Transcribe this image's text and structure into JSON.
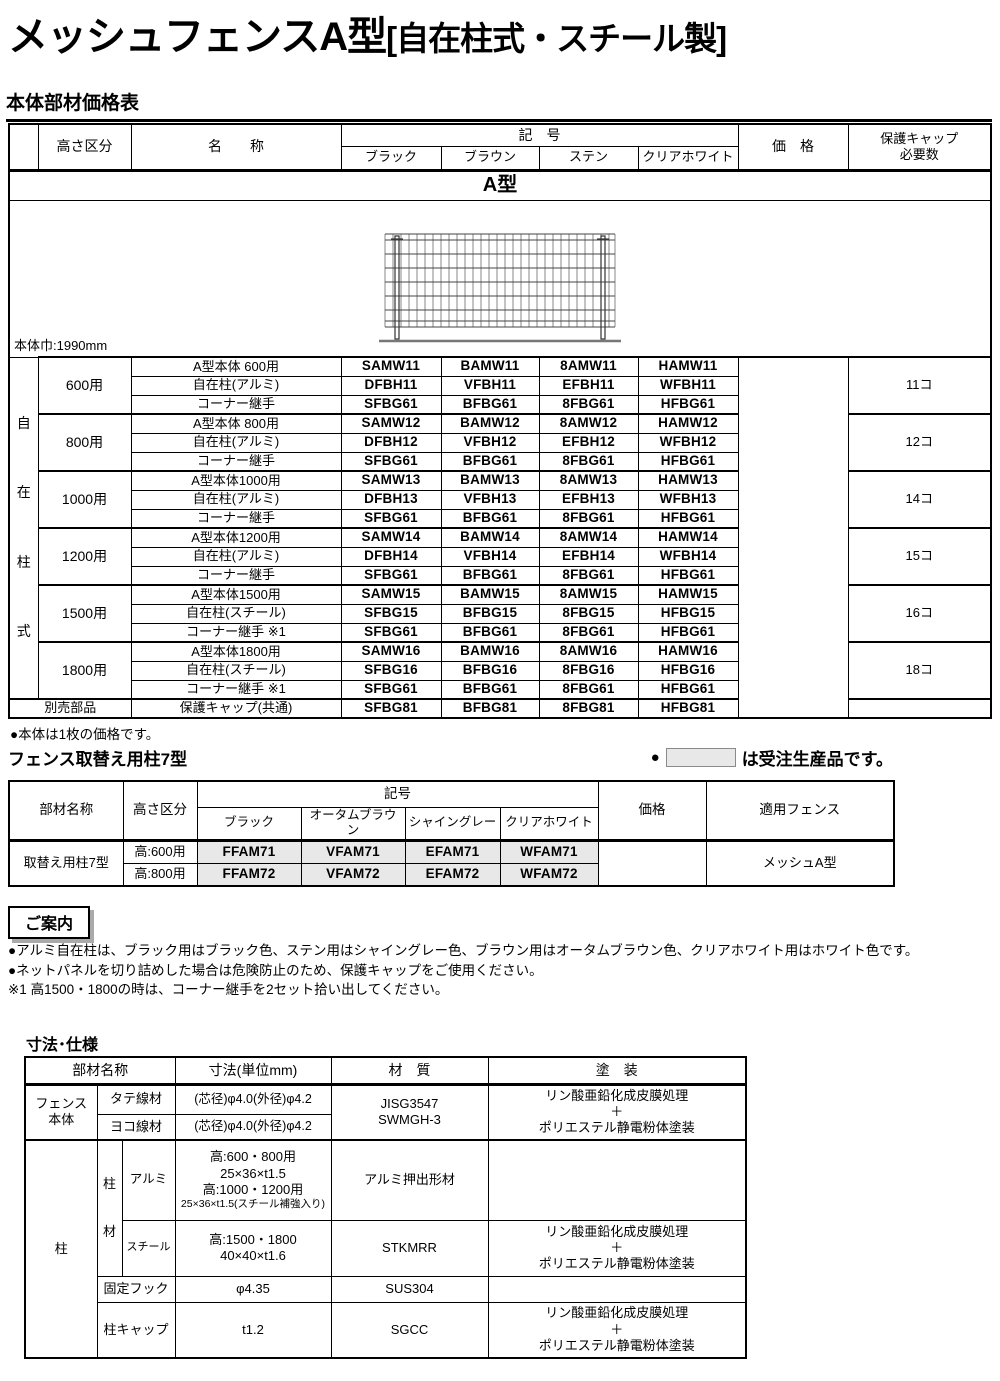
{
  "page": {
    "title": "メッシュフェンスA型",
    "title_bracket": "[自在柱式・スチール製]",
    "price_table_title": "本体部材価格表"
  },
  "price_table": {
    "model_header": "A型",
    "body_width_note": "本体巾:1990mm",
    "headers": {
      "height": "高さ区分",
      "name": "名　　称",
      "code": "記　号",
      "price": "価　格",
      "cap_count": "保護キャップ\n必要数",
      "colors": [
        "ブラック",
        "ブラウン",
        "ステン",
        "クリアホワイト"
      ]
    },
    "side_label": "自在柱式",
    "groups": [
      {
        "height": "600用",
        "cap_count": "11コ",
        "rows": [
          {
            "name": "A型本体 600用",
            "codes": [
              "SAMW11",
              "BAMW11",
              "8AMW11",
              "HAMW11"
            ]
          },
          {
            "name": "自在柱(アルミ)",
            "codes": [
              "DFBH11",
              "VFBH11",
              "EFBH11",
              "WFBH11"
            ]
          },
          {
            "name": "コーナー継手",
            "codes": [
              "SFBG61",
              "BFBG61",
              "8FBG61",
              "HFBG61"
            ]
          }
        ]
      },
      {
        "height": "800用",
        "cap_count": "12コ",
        "rows": [
          {
            "name": "A型本体 800用",
            "codes": [
              "SAMW12",
              "BAMW12",
              "8AMW12",
              "HAMW12"
            ]
          },
          {
            "name": "自在柱(アルミ)",
            "codes": [
              "DFBH12",
              "VFBH12",
              "EFBH12",
              "WFBH12"
            ]
          },
          {
            "name": "コーナー継手",
            "codes": [
              "SFBG61",
              "BFBG61",
              "8FBG61",
              "HFBG61"
            ]
          }
        ]
      },
      {
        "height": "1000用",
        "cap_count": "14コ",
        "rows": [
          {
            "name": "A型本体1000用",
            "codes": [
              "SAMW13",
              "BAMW13",
              "8AMW13",
              "HAMW13"
            ]
          },
          {
            "name": "自在柱(アルミ)",
            "codes": [
              "DFBH13",
              "VFBH13",
              "EFBH13",
              "WFBH13"
            ]
          },
          {
            "name": "コーナー継手",
            "codes": [
              "SFBG61",
              "BFBG61",
              "8FBG61",
              "HFBG61"
            ]
          }
        ]
      },
      {
        "height": "1200用",
        "cap_count": "15コ",
        "rows": [
          {
            "name": "A型本体1200用",
            "codes": [
              "SAMW14",
              "BAMW14",
              "8AMW14",
              "HAMW14"
            ]
          },
          {
            "name": "自在柱(アルミ)",
            "codes": [
              "DFBH14",
              "VFBH14",
              "EFBH14",
              "WFBH14"
            ]
          },
          {
            "name": "コーナー継手",
            "codes": [
              "SFBG61",
              "BFBG61",
              "8FBG61",
              "HFBG61"
            ]
          }
        ]
      },
      {
        "height": "1500用",
        "cap_count": "16コ",
        "rows": [
          {
            "name": "A型本体1500用",
            "codes": [
              "SAMW15",
              "BAMW15",
              "8AMW15",
              "HAMW15"
            ]
          },
          {
            "name": "自在柱(スチール)",
            "codes": [
              "SFBG15",
              "BFBG15",
              "8FBG15",
              "HFBG15"
            ]
          },
          {
            "name": "コーナー継手 ※1",
            "codes": [
              "SFBG61",
              "BFBG61",
              "8FBG61",
              "HFBG61"
            ]
          }
        ]
      },
      {
        "height": "1800用",
        "cap_count": "18コ",
        "rows": [
          {
            "name": "A型本体1800用",
            "codes": [
              "SAMW16",
              "BAMW16",
              "8AMW16",
              "HAMW16"
            ]
          },
          {
            "name": "自在柱(スチール)",
            "codes": [
              "SFBG16",
              "BFBG16",
              "8FBG16",
              "HFBG16"
            ]
          },
          {
            "name": "コーナー継手 ※1",
            "codes": [
              "SFBG61",
              "BFBG61",
              "8FBG61",
              "HFBG61"
            ]
          }
        ]
      }
    ],
    "separate_row": {
      "label": "別売部品",
      "name": "保護キャップ(共通)",
      "codes": [
        "SFBG81",
        "BFBG81",
        "8FBG81",
        "HFBG81"
      ],
      "cap_count": ""
    },
    "footnote": "●本体は1枚の価格です。"
  },
  "replacement_table": {
    "title": "フェンス取替え用柱7型",
    "made_to_order_note": "は受注生産品です。",
    "legend_dot": "●",
    "headers": {
      "part": "部材名称",
      "height": "高さ区分",
      "code": "記号",
      "price": "価格",
      "fence": "適用フェンス",
      "colors": [
        "ブラック",
        "オータムブラウン",
        "シャイングレー",
        "クリアホワイト"
      ]
    },
    "part_name": "取替え用柱7型",
    "applicable_fence": "メッシュA型",
    "rows": [
      {
        "height": "高:600用",
        "codes": [
          "FFAM71",
          "VFAM71",
          "EFAM71",
          "WFAM71"
        ]
      },
      {
        "height": "高:800用",
        "codes": [
          "FFAM72",
          "VFAM72",
          "EFAM72",
          "WFAM72"
        ]
      }
    ]
  },
  "guide": {
    "title": "ご案内",
    "notes": [
      "●アルミ自在柱は、ブラック用はブラック色、ステン用はシャイングレー色、ブラウン用はオータムブラウン色、クリアホワイト用はホワイト色です。",
      "●ネットパネルを切り詰めした場合は危険防止のため、保護キャップをご使用ください。",
      "※1 高1500・1800の時は、コーナー継手を2セット拾い出してください。"
    ]
  },
  "spec_table": {
    "title": "寸法･仕様",
    "headers": {
      "part": "部材名称",
      "size": "寸法(単位mm)",
      "material": "材　質",
      "coating": "塗　装"
    },
    "sections": {
      "fence": {
        "label": "フェンス\n本体",
        "rows": [
          {
            "part": "タテ線材",
            "size": "(芯径)φ4.0(外径)φ4.2"
          },
          {
            "part": "ヨコ線材",
            "size": "(芯径)φ4.0(外径)φ4.2"
          }
        ],
        "material": "JISG3547\nSWMGH-3",
        "coating": "リン酸亜鉛化成皮膜処理\n＋\nポリエステル静電粉体塗装"
      },
      "post": {
        "label": "柱",
        "post_material_label": "柱材",
        "alumi": {
          "label": "アルミ",
          "size_lines": [
            "高:600・800用",
            "25×36×t1.5",
            "高:1000・1200用",
            "25×36×t1.5(スチール補強入り)"
          ],
          "material": "アルミ押出形材",
          "coating": ""
        },
        "steel": {
          "label": "スチール",
          "size": "高:1500・1800\n40×40×t1.6",
          "material": "STKMRR",
          "coating": "リン酸亜鉛化成皮膜処理\n＋\nポリエステル静電粉体塗装"
        },
        "hook": {
          "label": "固定フック",
          "size": "φ4.35",
          "material": "SUS304",
          "coating": ""
        },
        "cap": {
          "label": "柱キャップ",
          "size": "t1.2",
          "material": "SGCC",
          "coating": "リン酸亜鉛化成皮膜処理\n＋\nポリエステル静電粉体塗装"
        }
      }
    }
  }
}
